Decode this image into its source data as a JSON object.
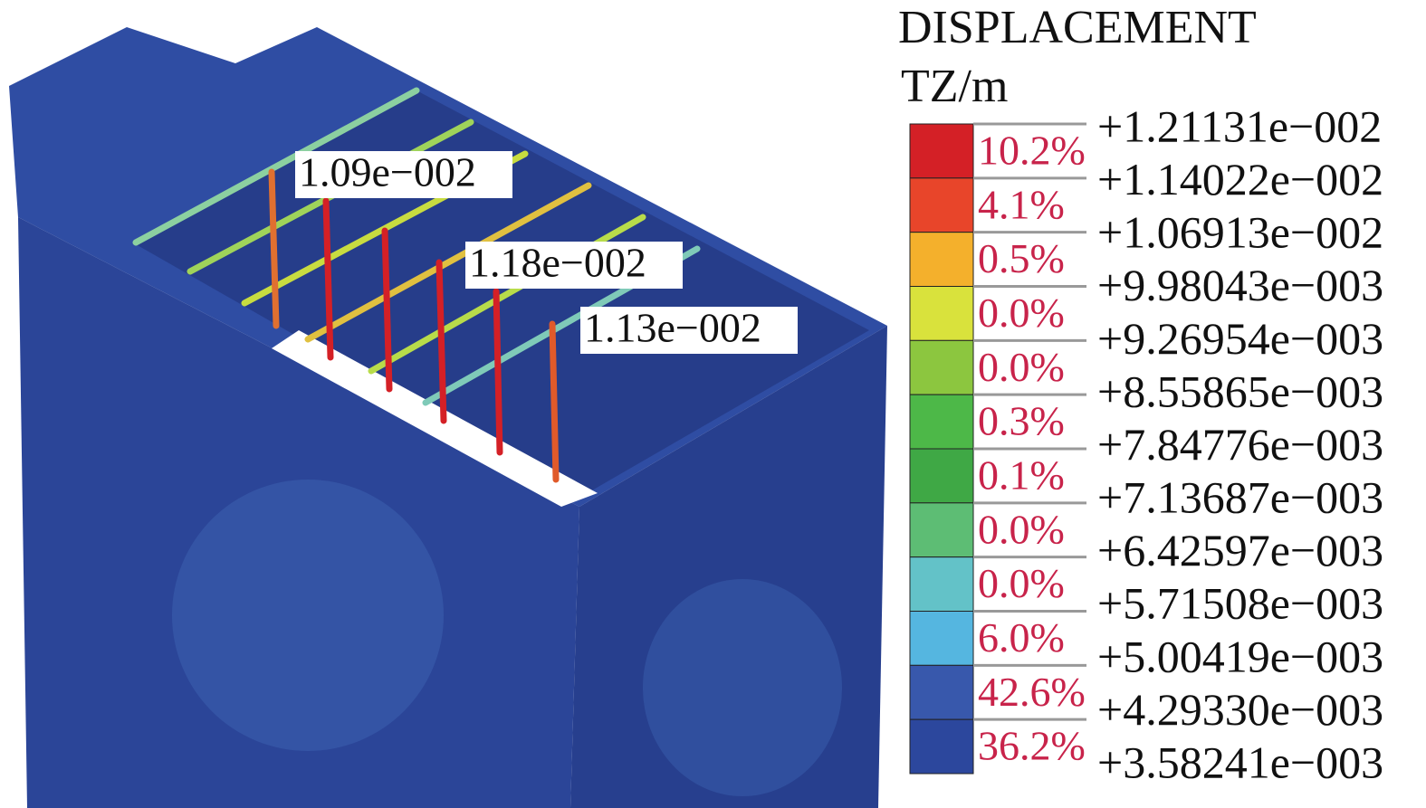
{
  "legend": {
    "title": "DISPLACEMENT",
    "unit": "TZ/m",
    "levels": [
      "+1.21131e−002",
      "+1.14022e−002",
      "+1.06913e−002",
      "+9.98043e−003",
      "+9.26954e−003",
      "+8.55865e−003",
      "+7.84776e−003",
      "+7.13687e−003",
      "+6.42597e−003",
      "+5.71508e−003",
      "+5.00419e−003",
      "+4.29330e−003",
      "+3.58241e−003"
    ],
    "bands": [
      {
        "percent": "10.2%",
        "color": "#d42026"
      },
      {
        "percent": "4.1%",
        "color": "#e8452a"
      },
      {
        "percent": "0.5%",
        "color": "#f4b02c"
      },
      {
        "percent": "0.0%",
        "color": "#d9e23c"
      },
      {
        "percent": "0.0%",
        "color": "#8cc63f"
      },
      {
        "percent": "0.3%",
        "color": "#4db848"
      },
      {
        "percent": "0.1%",
        "color": "#3fa845"
      },
      {
        "percent": "0.0%",
        "color": "#5dbd74"
      },
      {
        "percent": "0.0%",
        "color": "#63c2c8"
      },
      {
        "percent": "6.0%",
        "color": "#55b6e0"
      },
      {
        "percent": "42.6%",
        "color": "#3858ac"
      },
      {
        "percent": "36.2%",
        "color": "#2c479d"
      }
    ]
  },
  "annotations": [
    "1.09e−002",
    "1.18e−002",
    "1.13e−002"
  ]
}
